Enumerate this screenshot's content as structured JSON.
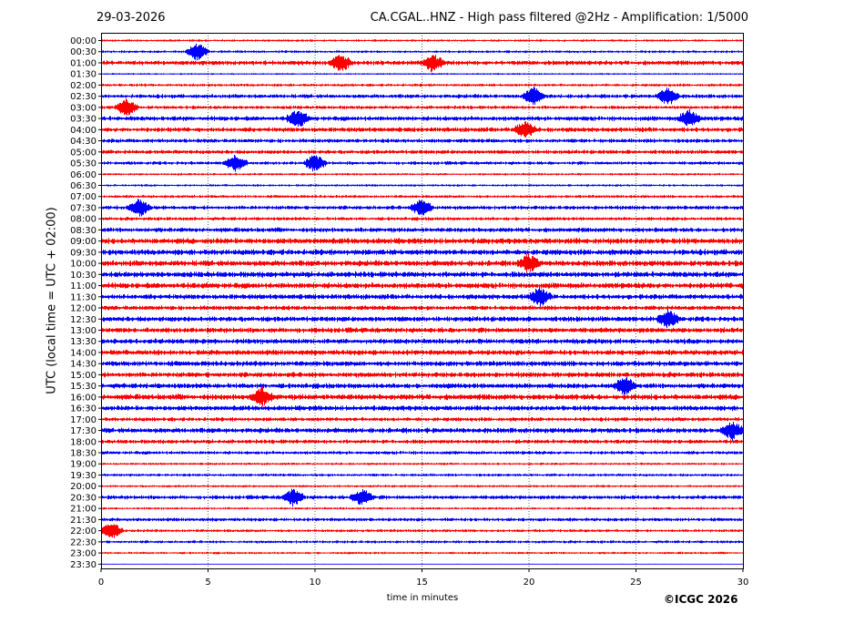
{
  "header": {
    "date": "29-03-2026",
    "title": "CA.CGAL..HNZ - High pass filtered @2Hz - Amplification: 1/5000"
  },
  "footer": {
    "copyright": "©ICGC 2026"
  },
  "chart_data": {
    "type": "line",
    "title": "CA.CGAL..HNZ - High pass filtered @2Hz - Amplification: 1/5000",
    "xlabel": "time in minutes",
    "ylabel": "UTC (local time = UTC + 02:00)",
    "xlim": [
      0,
      30
    ],
    "x_ticks": [
      "0",
      "5",
      "10",
      "15",
      "20",
      "25",
      "30"
    ],
    "x_grid": "dotted vertical lines at each 5 minutes",
    "rows": [
      "00:00",
      "00:30",
      "01:00",
      "01:30",
      "02:00",
      "02:30",
      "03:00",
      "03:30",
      "04:00",
      "04:30",
      "05:00",
      "05:30",
      "06:00",
      "06:30",
      "07:00",
      "07:30",
      "08:00",
      "08:30",
      "09:00",
      "09:30",
      "10:00",
      "10:30",
      "11:00",
      "11:30",
      "12:00",
      "12:30",
      "13:00",
      "13:30",
      "14:00",
      "14:30",
      "15:00",
      "15:30",
      "16:00",
      "16:30",
      "17:00",
      "17:30",
      "18:00",
      "18:30",
      "19:00",
      "19:30",
      "20:00",
      "20:30",
      "21:00",
      "21:30",
      "22:00",
      "22:30",
      "23:00",
      "23:30"
    ],
    "trace_colors": [
      "#ff0000",
      "#0000ff"
    ],
    "row_amplitude": [
      0.4,
      0.45,
      0.8,
      0.3,
      0.5,
      0.7,
      0.6,
      0.8,
      0.8,
      0.7,
      0.7,
      0.6,
      0.4,
      0.4,
      0.5,
      0.7,
      0.6,
      0.8,
      1.0,
      1.0,
      1.0,
      1.0,
      1.0,
      0.9,
      0.8,
      0.9,
      0.9,
      0.9,
      0.9,
      0.9,
      0.9,
      0.9,
      1.0,
      0.9,
      0.7,
      0.9,
      0.7,
      0.6,
      0.4,
      0.5,
      0.4,
      0.7,
      0.4,
      0.6,
      0.5,
      0.5,
      0.4,
      0.1
    ],
    "events": [
      {
        "row": "00:30",
        "minute": 4.5
      },
      {
        "row": "01:00",
        "minute": 11.2
      },
      {
        "row": "01:00",
        "minute": 15.5
      },
      {
        "row": "02:30",
        "minute": 20.2
      },
      {
        "row": "02:30",
        "minute": 26.5
      },
      {
        "row": "03:00",
        "minute": 1.2
      },
      {
        "row": "03:30",
        "minute": 9.2
      },
      {
        "row": "03:30",
        "minute": 27.5
      },
      {
        "row": "04:00",
        "minute": 19.8
      },
      {
        "row": "05:30",
        "minute": 6.3
      },
      {
        "row": "05:30",
        "minute": 10.0
      },
      {
        "row": "07:30",
        "minute": 1.8
      },
      {
        "row": "07:30",
        "minute": 15.0
      },
      {
        "row": "10:00",
        "minute": 20.0
      },
      {
        "row": "11:30",
        "minute": 20.5
      },
      {
        "row": "12:30",
        "minute": 26.5
      },
      {
        "row": "15:30",
        "minute": 24.5
      },
      {
        "row": "16:00",
        "minute": 7.5
      },
      {
        "row": "17:30",
        "minute": 29.5
      },
      {
        "row": "20:30",
        "minute": 9.0
      },
      {
        "row": "20:30",
        "minute": 12.2
      },
      {
        "row": "22:00",
        "minute": 0.5
      }
    ]
  }
}
